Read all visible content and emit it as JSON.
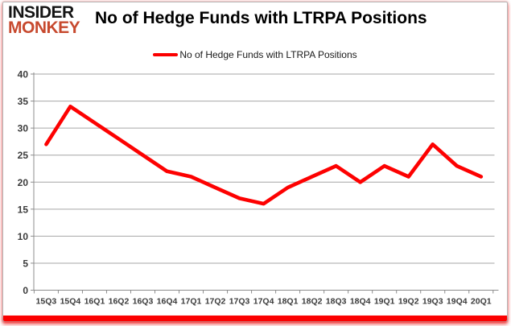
{
  "logo": {
    "line1": "INSIDER",
    "line2": "MONKEY"
  },
  "title": "No of Hedge Funds with LTRPA Positions",
  "legend": {
    "label": "No of Hedge Funds with LTRPA Positions"
  },
  "colors": {
    "line": "#fd0101",
    "accent_bar": "#fb0000",
    "logo_black": "#141414",
    "logo_red": "#c7492e",
    "grid": "#a6a6a6",
    "axis": "#8c8c8c",
    "tick_label": "#3b3b3b"
  },
  "chart_data": {
    "type": "line",
    "title": "No of Hedge Funds with LTRPA Positions",
    "series_name": "No of Hedge Funds with LTRPA Positions",
    "categories": [
      "15Q3",
      "15Q4",
      "16Q1",
      "16Q2",
      "16Q3",
      "16Q4",
      "17Q1",
      "17Q2",
      "17Q3",
      "17Q4",
      "18Q1",
      "18Q2",
      "18Q3",
      "18Q4",
      "19Q1",
      "19Q2",
      "19Q3",
      "19Q4",
      "20Q1"
    ],
    "values": [
      27,
      34,
      31,
      28,
      25,
      22,
      21,
      19,
      17,
      16,
      19,
      21,
      23,
      20,
      23,
      21,
      27,
      23,
      21
    ],
    "xlabel": "",
    "ylabel": "",
    "ylim": [
      0,
      40
    ],
    "ytick_step": 5,
    "grid": true,
    "legend_position": "top"
  }
}
